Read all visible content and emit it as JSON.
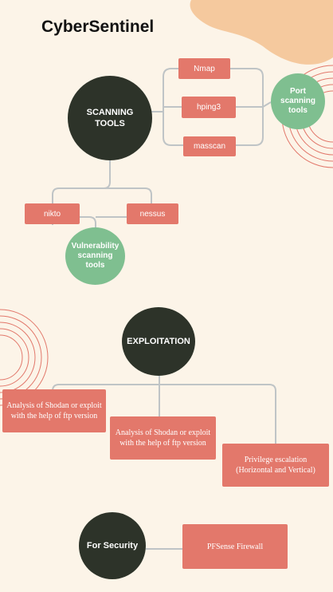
{
  "title": "CyberSentinel",
  "colors": {
    "background": "#fcf4e8",
    "dark_node": "#2d3329",
    "green_node": "#7fbf90",
    "box": "#e3786b",
    "connector": "#bfc4c6",
    "blob": "#f5c99e",
    "arcs": "#e2786b"
  },
  "scanning": {
    "center": "SCANNING TOOLS",
    "port": {
      "label": "Port scanning tools",
      "tools": [
        "Nmap",
        "hping3",
        "masscan"
      ]
    },
    "vulnerability": {
      "label": "Vulnerability scanning tools",
      "tools": [
        "nikto",
        "nessus"
      ]
    }
  },
  "exploitation": {
    "center": "EXPLOITATION",
    "items": [
      "Analysis of Shodan or exploit with the help of ftp version",
      "Analysis of Shodan or exploit with the help of ftp version",
      "Privilege escalation (Horizontal and Vertical)"
    ]
  },
  "security": {
    "center": "For Security",
    "item": "PFSense Firewall"
  }
}
